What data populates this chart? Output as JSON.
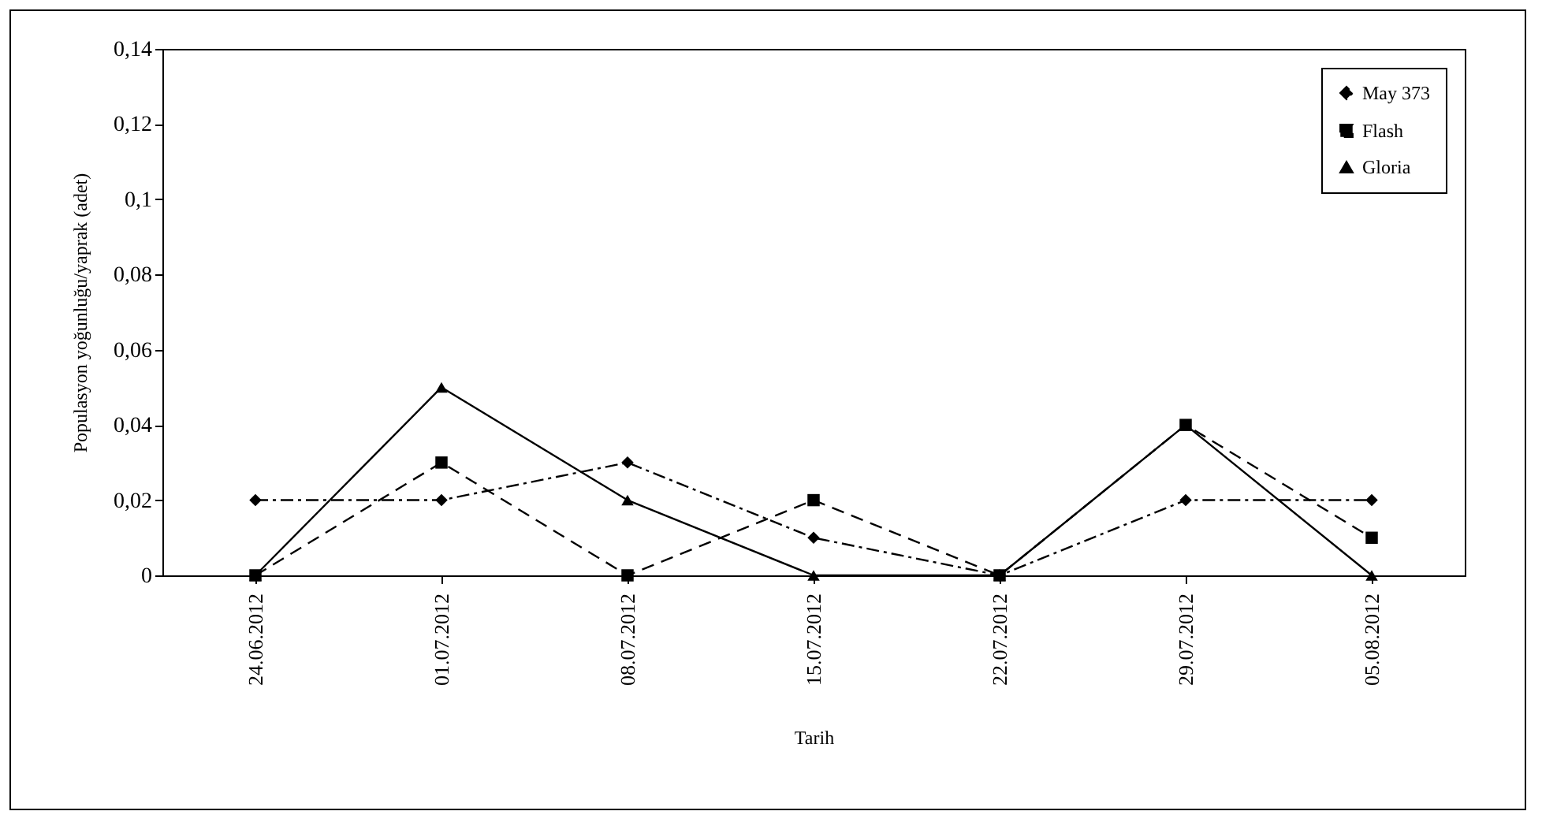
{
  "chart_data": {
    "type": "line",
    "xlabel": "Tarih",
    "ylabel": "Populasyon yoğunluğu/yaprak (adet)",
    "categories": [
      "24.06.2012",
      "01.07.2012",
      "08.07.2012",
      "15.07.2012",
      "22.07.2012",
      "29.07.2012",
      "05.08.2012"
    ],
    "series": [
      {
        "name": "May 373",
        "color": "#000000",
        "marker": "diamond",
        "line_style": "dotted",
        "values": [
          0.02,
          0.02,
          0.03,
          0.01,
          0,
          0.02,
          0.02
        ]
      },
      {
        "name": "Flash",
        "color": "#000000",
        "marker": "square",
        "line_style": "dashed",
        "values": [
          0,
          0.03,
          0,
          0.02,
          0,
          0.04,
          0.01
        ]
      },
      {
        "name": "Gloria",
        "color": "#000000",
        "marker": "triangle",
        "line_style": "solid",
        "values": [
          0,
          0.05,
          0.02,
          0,
          0,
          0.04,
          0
        ]
      }
    ],
    "ylim": [
      0,
      0.14
    ],
    "yticks": [
      {
        "value": 0,
        "label": "0"
      },
      {
        "value": 0.02,
        "label": "0,02"
      },
      {
        "value": 0.04,
        "label": "0,04"
      },
      {
        "value": 0.06,
        "label": "0,06"
      },
      {
        "value": 0.08,
        "label": "0,08"
      },
      {
        "value": 0.1,
        "label": "0,1"
      },
      {
        "value": 0.12,
        "label": "0,12"
      },
      {
        "value": 0.14,
        "label": "0,14"
      }
    ],
    "grid": false,
    "legend": "top right"
  }
}
